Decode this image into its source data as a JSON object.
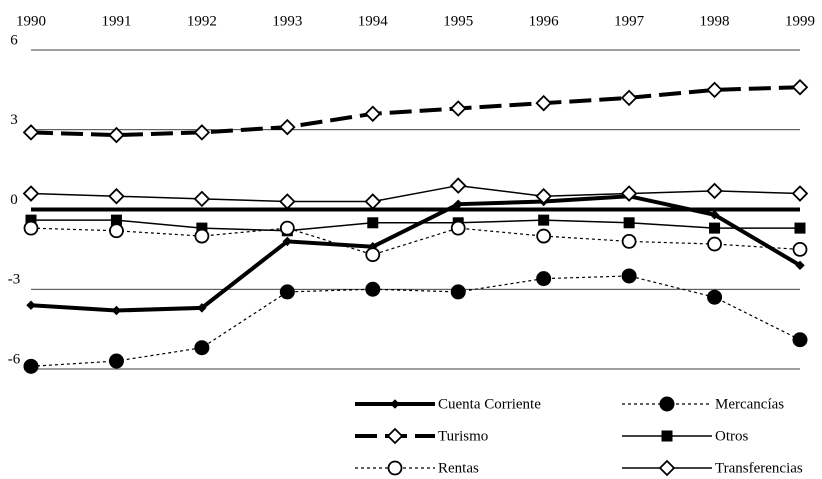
{
  "chart_data": {
    "type": "line",
    "categories": [
      "1990",
      "1991",
      "1992",
      "1993",
      "1994",
      "1995",
      "1996",
      "1997",
      "1998",
      "1999"
    ],
    "ylim": [
      -6,
      6
    ],
    "yticks": [
      6,
      3,
      0,
      -3,
      -6
    ],
    "grid": true,
    "series": [
      {
        "name": "Cuenta Corriente",
        "color": "#000000",
        "width": 4,
        "dash": "",
        "marker": "diamond-small",
        "values": [
          -3.6,
          -3.8,
          -3.7,
          -1.2,
          -1.4,
          0.2,
          0.3,
          0.5,
          -0.2,
          -2.1
        ]
      },
      {
        "name": "Mercancías",
        "color": "#000000",
        "width": 1.2,
        "dash": "3 3",
        "marker": "circle-filled",
        "values": [
          -5.9,
          -5.7,
          -5.2,
          -3.1,
          -3.0,
          -3.1,
          -2.6,
          -2.5,
          -3.3,
          -4.9
        ]
      },
      {
        "name": "Turismo",
        "color": "#000000",
        "width": 4,
        "dash": "22 8",
        "marker": "diamond-open",
        "values": [
          2.9,
          2.8,
          2.9,
          3.1,
          3.6,
          3.8,
          4.0,
          4.2,
          4.5,
          4.6
        ]
      },
      {
        "name": "Otros",
        "color": "#000000",
        "width": 1.5,
        "dash": "",
        "marker": "square",
        "values": [
          -0.4,
          -0.4,
          -0.7,
          -0.8,
          -0.5,
          -0.5,
          -0.4,
          -0.5,
          -0.7,
          -0.7
        ]
      },
      {
        "name": "Rentas",
        "color": "#000000",
        "width": 1.2,
        "dash": "3 3",
        "marker": "circle-open",
        "values": [
          -0.7,
          -0.8,
          -1.0,
          -0.7,
          -1.7,
          -0.7,
          -1.0,
          -1.2,
          -1.3,
          -1.5
        ]
      },
      {
        "name": "Transferencias",
        "color": "#000000",
        "width": 1.5,
        "dash": "",
        "marker": "diamond-open",
        "values": [
          0.6,
          0.5,
          0.4,
          0.3,
          0.3,
          0.9,
          0.5,
          0.6,
          0.7,
          0.6
        ]
      }
    ]
  }
}
